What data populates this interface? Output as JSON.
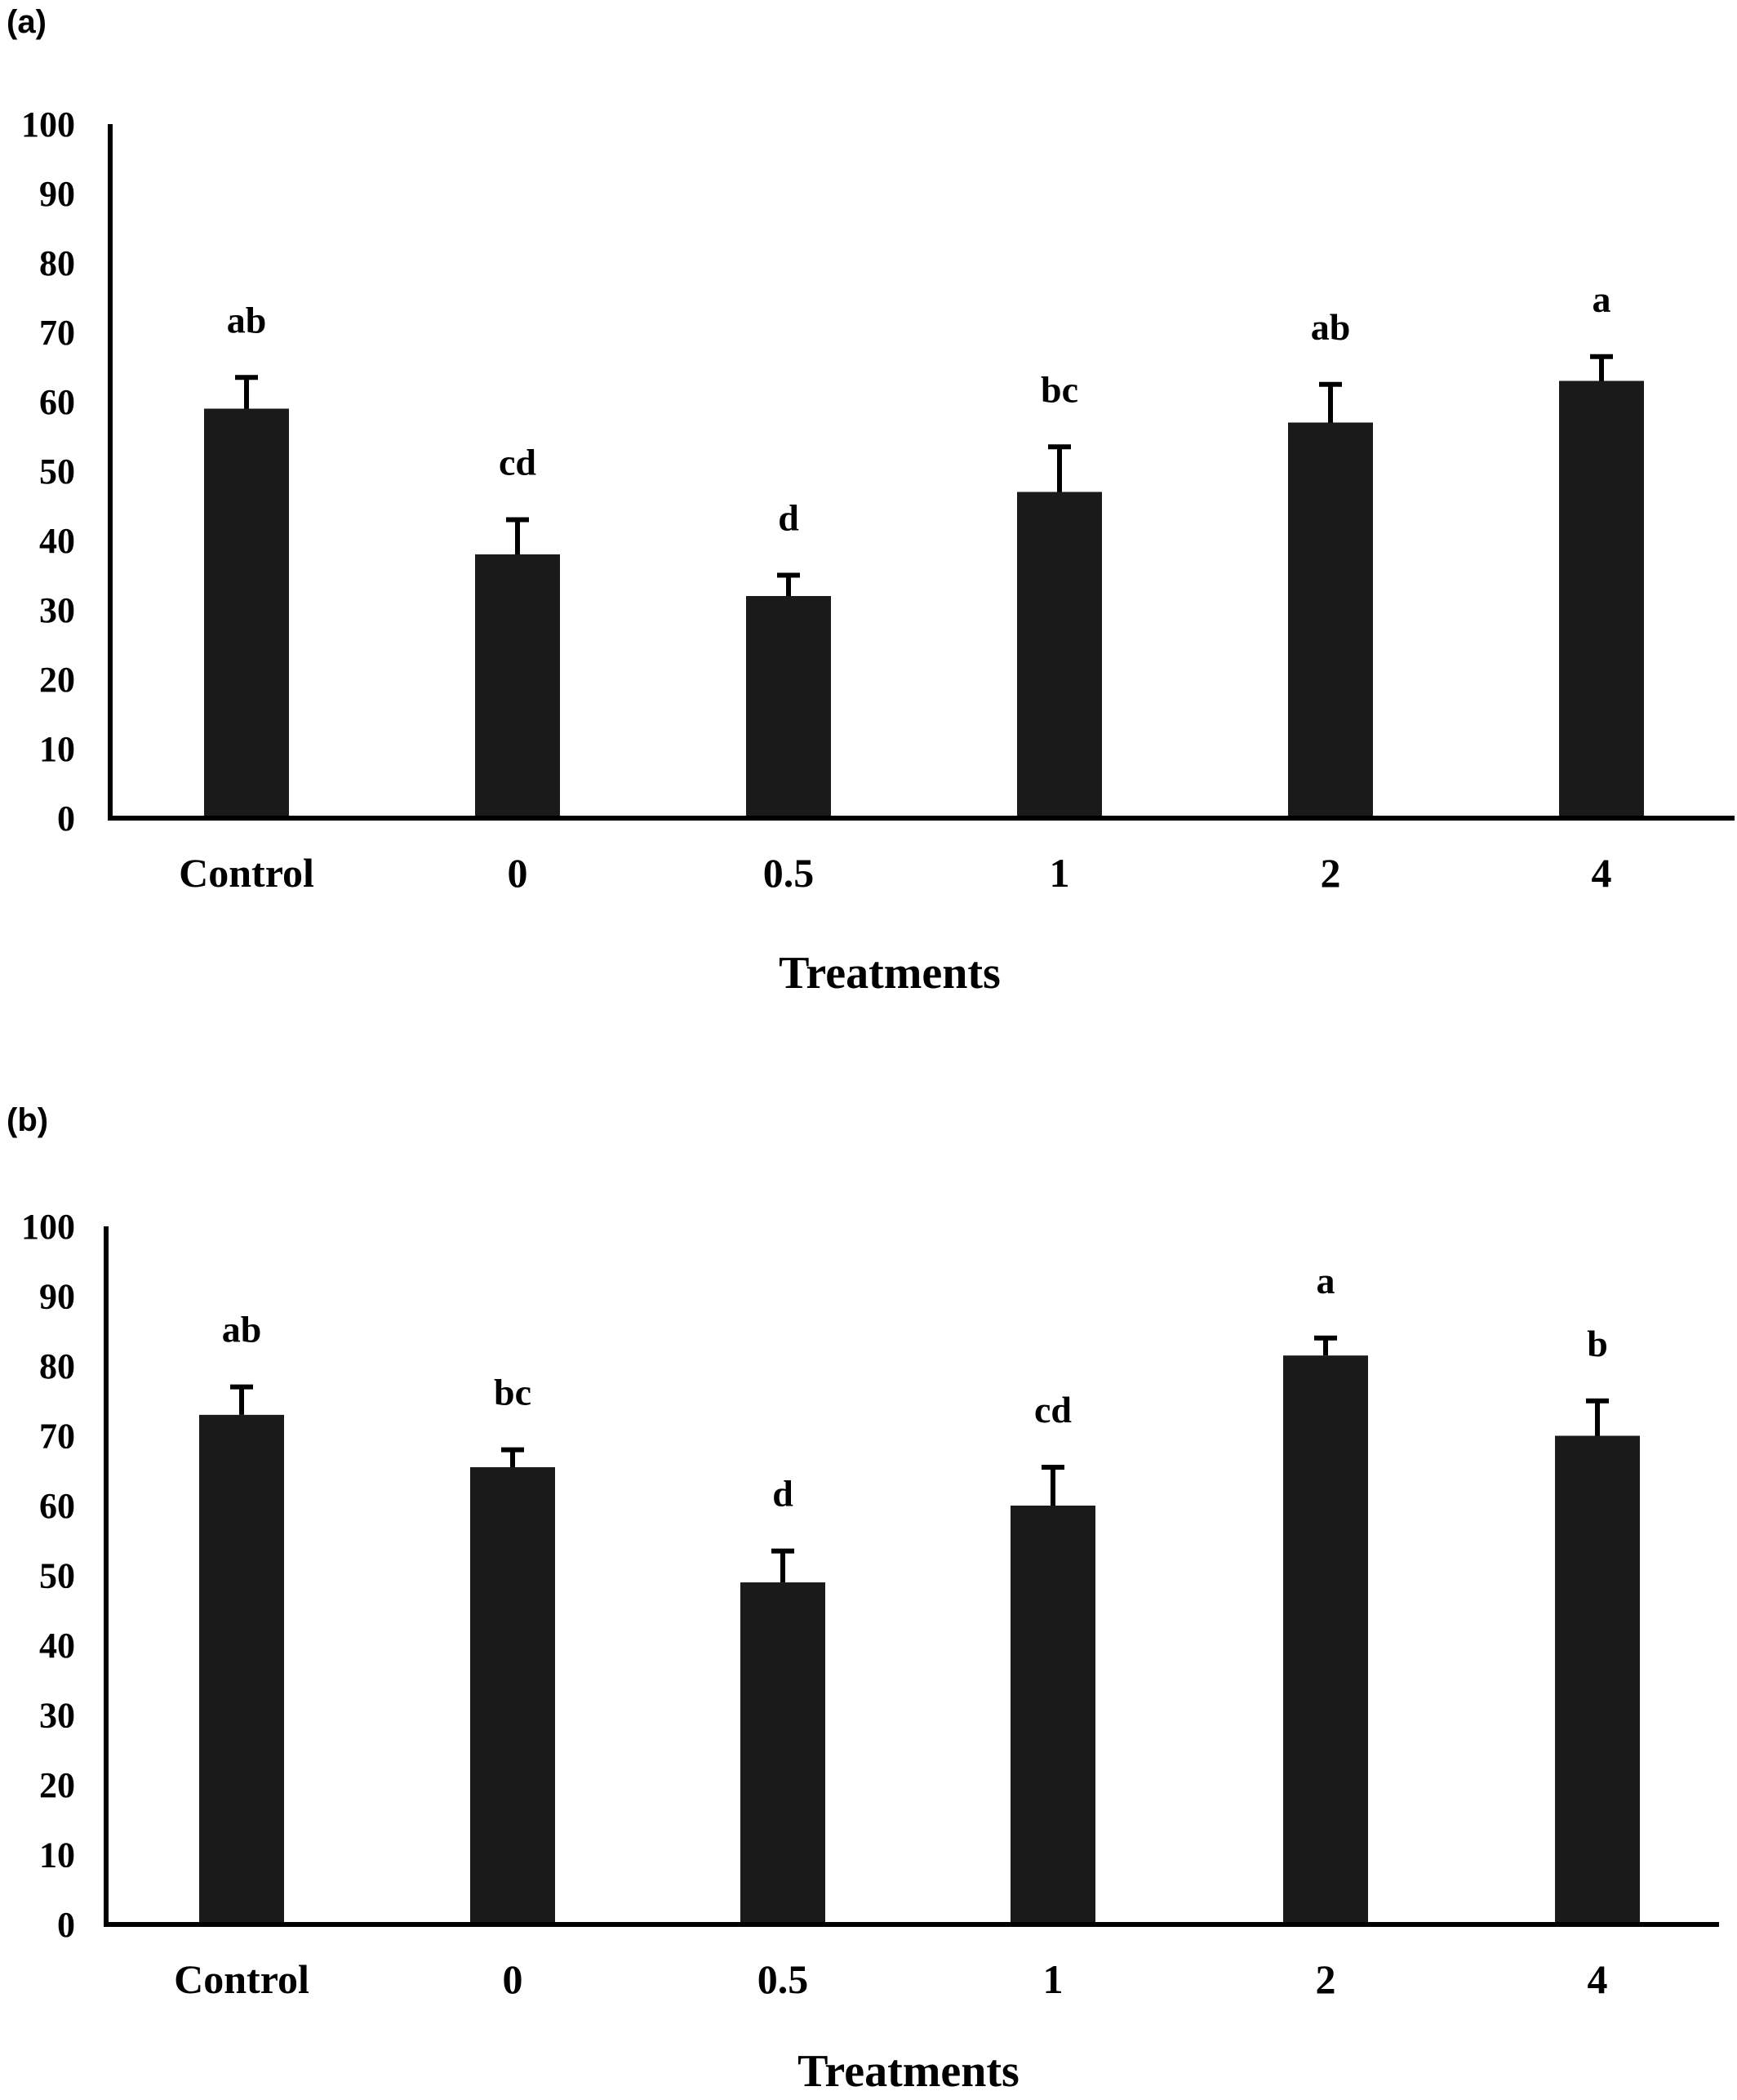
{
  "chart_data": [
    {
      "type": "bar",
      "panel_label": "(a)",
      "categories": [
        "Control",
        "0",
        "0.5",
        "1",
        "2",
        "4"
      ],
      "values": [
        59,
        38,
        32,
        47,
        57,
        63
      ],
      "errors": [
        4.5,
        5,
        3,
        6.5,
        5.5,
        3.5
      ],
      "significance_letters": [
        "ab",
        "cd",
        "d",
        "bc",
        "ab",
        "a"
      ],
      "xlabel": "Treatments",
      "ylabel": "",
      "ylim": [
        0,
        100
      ],
      "yticks": [
        "0",
        "10",
        "20",
        "30",
        "40",
        "50",
        "60",
        "70",
        "80",
        "90",
        "100"
      ],
      "bar_color": "#1a1a1a",
      "grid": false
    },
    {
      "type": "bar",
      "panel_label": "(b)",
      "categories": [
        "Control",
        "0",
        "0.5",
        "1",
        "2",
        "4"
      ],
      "values": [
        73,
        65.5,
        49,
        60,
        81.5,
        70
      ],
      "errors": [
        4,
        2.5,
        4.5,
        5.5,
        2.5,
        5
      ],
      "significance_letters": [
        "ab",
        "bc",
        "d",
        "cd",
        "a",
        "b"
      ],
      "xlabel": "Treatments",
      "ylabel": "",
      "ylim": [
        0,
        100
      ],
      "yticks": [
        "0",
        "10",
        "20",
        "30",
        "40",
        "50",
        "60",
        "70",
        "80",
        "90",
        "100"
      ],
      "bar_color": "#1a1a1a",
      "grid": false
    }
  ]
}
